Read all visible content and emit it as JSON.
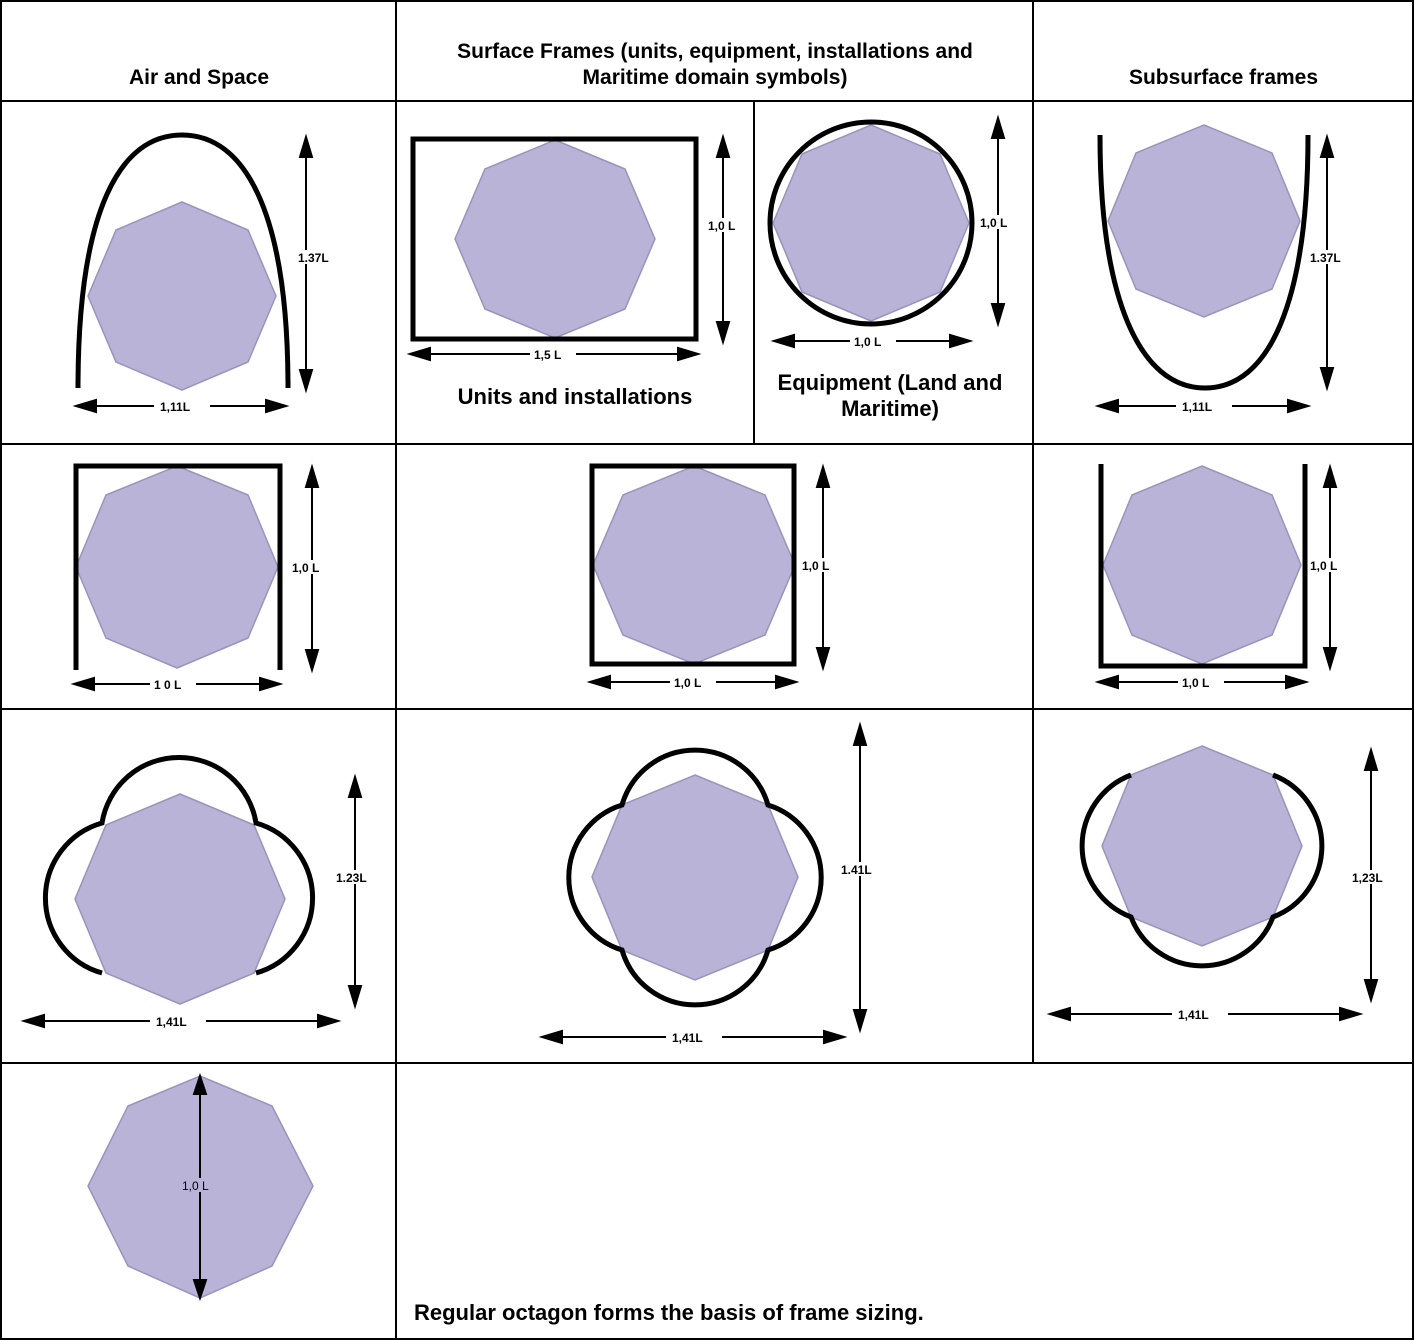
{
  "headers": {
    "air": "Air and Space",
    "surface": "Surface Frames (units, equipment, installations and Maritime domain symbols)",
    "subsurface": "Subsurface frames"
  },
  "captions": {
    "units": "Units and installations",
    "equipment": "Equipment (Land and Maritime)",
    "basis": "Regular octagon forms the basis of frame sizing."
  },
  "dims": {
    "r1_air_h": "1.37L",
    "r1_air_w": "1,11L",
    "r1_units_h": "1,0 L",
    "r1_units_w": "1,5 L",
    "r1_equip_h": "1,0 L",
    "r1_equip_w": "1,0 L",
    "r1_sub_h": "1.37L",
    "r1_sub_w": "1,11L",
    "r2_air_h": "1,0 L",
    "r2_air_w": "1 0 L",
    "r2_surf_h": "1,0 L",
    "r2_surf_w": "1,0 L",
    "r2_sub_h": "1,0 L",
    "r2_sub_w": "1,0 L",
    "r3_air_h": "1.23L",
    "r3_air_w": "1,41L",
    "r3_surf_h": "1.41L",
    "r3_surf_w": "1,41L",
    "r3_sub_h": "1,23L",
    "r3_sub_w": "1,41L",
    "r4_oct": "1,0 L"
  },
  "colors": {
    "octagon_fill": "#b9b3d7",
    "frame": "#000000"
  }
}
